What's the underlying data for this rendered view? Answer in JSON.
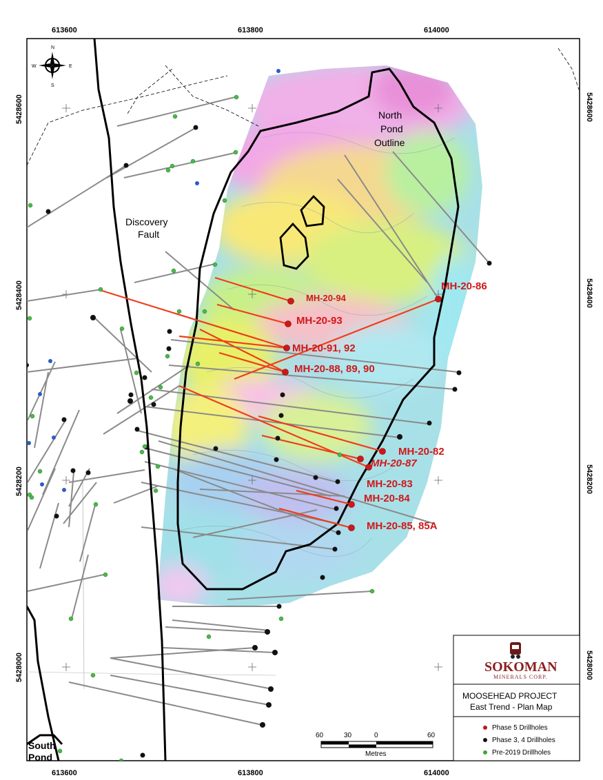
{
  "axes": {
    "x_ticks": [
      "613600",
      "613800",
      "614000"
    ],
    "y_ticks": [
      "5428600",
      "5428400",
      "5428200",
      "5428000"
    ]
  },
  "places": {
    "discovery_fault": [
      "Discovery",
      "Fault"
    ],
    "north_pond": [
      "North",
      "Pond",
      "Outline"
    ],
    "south_pond": [
      "South",
      "Pond"
    ]
  },
  "compass": {
    "n": "N",
    "s": "S",
    "e": "E",
    "w": "W"
  },
  "phase5_holes": [
    {
      "label": "MH-20-94"
    },
    {
      "label": "MH-20-86"
    },
    {
      "label": "MH-20-93"
    },
    {
      "label": "MH-20-91, 92"
    },
    {
      "label": "MH-20-88, 89, 90"
    },
    {
      "label": "MH-20-82"
    },
    {
      "label": "MH-20-87"
    },
    {
      "label": "MH-20-83"
    },
    {
      "label": "MH-20-84"
    },
    {
      "label": "MH-20-85, 85A"
    }
  ],
  "scale": {
    "labels": [
      "60",
      "30",
      "0",
      "60"
    ],
    "unit": "Metres"
  },
  "title_block": {
    "brand": "SOKOMAN",
    "brand_sub": "MINERALS CORP.",
    "project": "MOOSEHEAD PROJECT",
    "subtitle": "East Trend - Plan Map"
  },
  "legend": [
    {
      "label": "Phase 5 Drillholes",
      "color": "#c81414"
    },
    {
      "label": "Phase 3, 4 Drillholes",
      "color": "#111111"
    },
    {
      "label": "Pre-2019 Drillholes",
      "color": "#3aa83a"
    }
  ]
}
